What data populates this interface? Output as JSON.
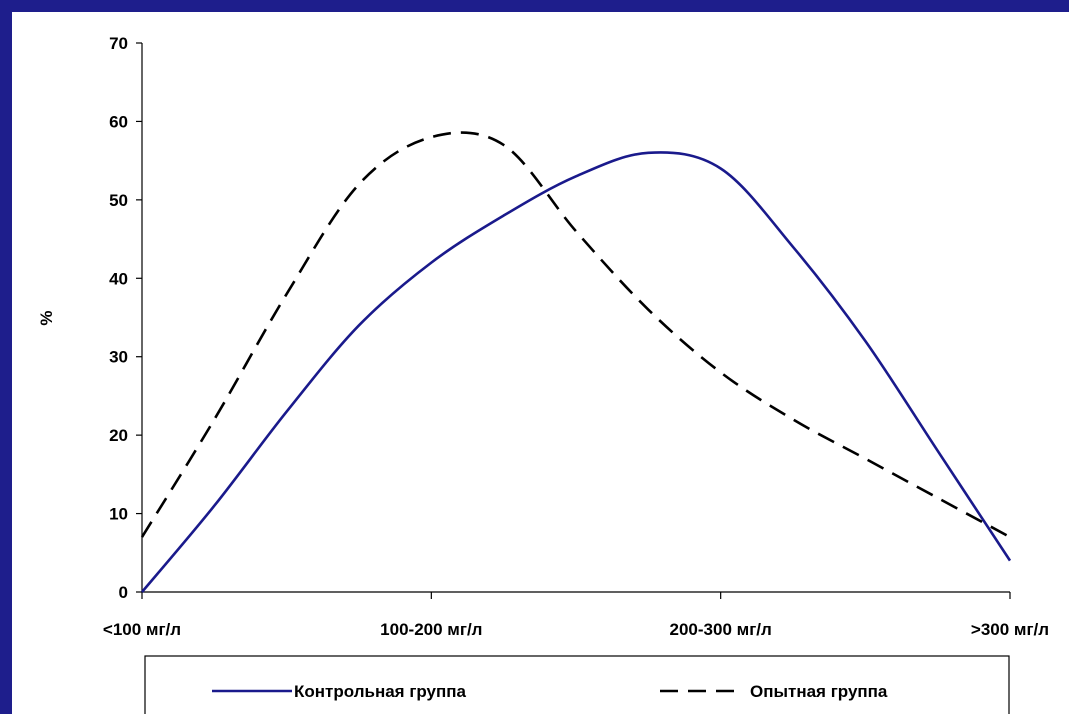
{
  "colors": {
    "background": "#1e1e8c",
    "panel": "#ffffff",
    "series_control": "#1a1a8c",
    "series_experimental": "#000000",
    "axis": "#000000"
  },
  "chart_data": {
    "type": "line",
    "title": "",
    "xlabel": "",
    "ylabel": "%",
    "categories": [
      "<100 мг/л",
      "100-200 мг/л",
      "200-300 мг/л",
      ">300 мг/л"
    ],
    "ylim": [
      0,
      70
    ],
    "yticks": [
      0,
      10,
      20,
      30,
      40,
      50,
      60,
      70
    ],
    "grid": false,
    "legend": "bottom",
    "smooth": true,
    "series": [
      {
        "name": "Контрольная группа",
        "style": "solid",
        "x": [
          0,
          0.25,
          0.5,
          0.75,
          1.0,
          1.25,
          1.5,
          1.75,
          2.0,
          2.25,
          2.5,
          2.75,
          3.0
        ],
        "values": [
          0,
          11,
          23,
          34,
          42,
          48,
          53,
          56,
          54,
          44,
          32,
          18,
          4
        ]
      },
      {
        "name": "Опытная группа",
        "style": "dashed",
        "x": [
          0,
          0.25,
          0.5,
          0.75,
          1.0,
          1.25,
          1.5,
          1.75,
          2.0,
          2.25,
          2.5,
          2.75,
          3.0
        ],
        "values": [
          7,
          22,
          38,
          52,
          58,
          57,
          46,
          36,
          28,
          22,
          17,
          12,
          7
        ]
      }
    ]
  }
}
